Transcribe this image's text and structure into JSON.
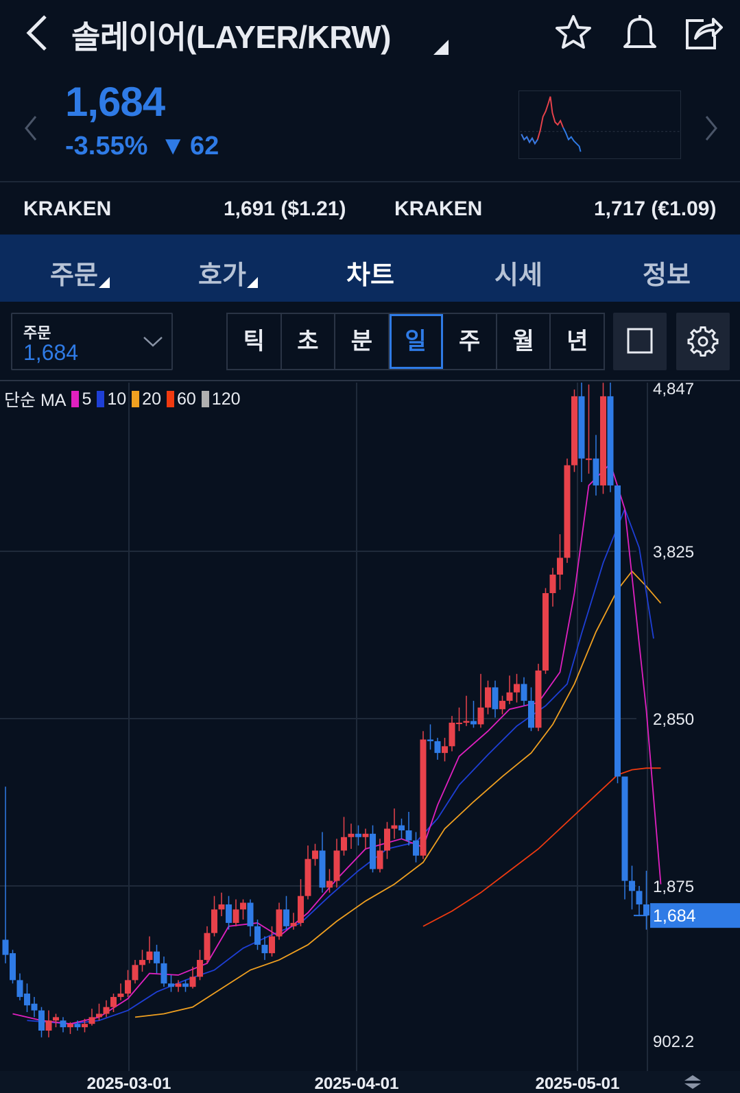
{
  "header": {
    "title": "솔레이어(LAYER/KRW)",
    "back_icon": "chevron-left-icon",
    "actions": [
      "star-icon",
      "bell-icon",
      "share-icon"
    ]
  },
  "price": {
    "current": "1,684",
    "change_pct": "-3.55%",
    "change_abs": "62",
    "color": "#2f7be6"
  },
  "exchanges": [
    {
      "name": "KRAKEN",
      "value": "1,691 ($1.21)"
    },
    {
      "name": "KRAKEN",
      "value": "1,717 (€1.09)"
    }
  ],
  "tabs": [
    "주문",
    "호가",
    "차트",
    "시세",
    "정보"
  ],
  "active_tab": "차트",
  "order_select": {
    "label": "주문",
    "value": "1,684"
  },
  "periods": [
    "틱",
    "초",
    "분",
    "일",
    "주",
    "월",
    "년"
  ],
  "active_period": "일",
  "legend": {
    "prefix": "단순 MA",
    "items": [
      {
        "label": "5",
        "color": "#e020c0"
      },
      {
        "label": "10",
        "color": "#1e3fd6"
      },
      {
        "label": "20",
        "color": "#f0a020"
      },
      {
        "label": "60",
        "color": "#f03a10"
      },
      {
        "label": "120",
        "color": "#b0b0b0"
      }
    ]
  },
  "chart_data": {
    "type": "candlestick",
    "y_ticks": [
      "4,847",
      "3,825",
      "2,850",
      "1,875",
      "902.2"
    ],
    "ylim": [
      902.2,
      4847
    ],
    "x_ticks": [
      "2025-03-01",
      "2025-04-01",
      "2025-05-01"
    ],
    "current_label": "1,684",
    "up_color": "#e8424b",
    "down_color": "#2f7be6",
    "candles": [
      [
        1540,
        1450,
        2450,
        1400
      ],
      [
        1460,
        1300,
        1480,
        1280
      ],
      [
        1300,
        1200,
        1340,
        1180
      ],
      [
        1220,
        1150,
        1280,
        1110
      ],
      [
        1160,
        1120,
        1200,
        1080
      ],
      [
        1120,
        1000,
        1140,
        960
      ],
      [
        1000,
        1060,
        1120,
        960
      ],
      [
        1060,
        1080,
        1100,
        1020
      ],
      [
        1060,
        1020,
        1080,
        990
      ],
      [
        1020,
        1040,
        1050,
        980
      ],
      [
        1040,
        1020,
        1060,
        1000
      ],
      [
        1020,
        1040,
        1070,
        990
      ],
      [
        1040,
        1080,
        1130,
        1030
      ],
      [
        1080,
        1100,
        1160,
        1060
      ],
      [
        1100,
        1140,
        1180,
        1080
      ],
      [
        1140,
        1200,
        1220,
        1110
      ],
      [
        1200,
        1220,
        1280,
        1180
      ],
      [
        1220,
        1300,
        1360,
        1200
      ],
      [
        1300,
        1390,
        1420,
        1280
      ],
      [
        1390,
        1420,
        1480,
        1350
      ],
      [
        1420,
        1470,
        1560,
        1400
      ],
      [
        1470,
        1400,
        1510,
        1340
      ],
      [
        1400,
        1280,
        1440,
        1260
      ],
      [
        1280,
        1260,
        1330,
        1230
      ],
      [
        1260,
        1280,
        1300,
        1230
      ],
      [
        1280,
        1260,
        1300,
        1230
      ],
      [
        1260,
        1320,
        1380,
        1250
      ],
      [
        1320,
        1420,
        1480,
        1300
      ],
      [
        1420,
        1580,
        1620,
        1400
      ],
      [
        1580,
        1720,
        1800,
        1560
      ],
      [
        1720,
        1750,
        1820,
        1680
      ],
      [
        1750,
        1640,
        1800,
        1600
      ],
      [
        1640,
        1720,
        1780,
        1620
      ],
      [
        1720,
        1760,
        1780,
        1660
      ],
      [
        1760,
        1620,
        1780,
        1560
      ],
      [
        1620,
        1510,
        1660,
        1480
      ],
      [
        1510,
        1460,
        1560,
        1420
      ],
      [
        1460,
        1560,
        1620,
        1440
      ],
      [
        1560,
        1720,
        1760,
        1540
      ],
      [
        1720,
        1620,
        1800,
        1600
      ],
      [
        1620,
        1640,
        1700,
        1600
      ],
      [
        1640,
        1800,
        1900,
        1620
      ],
      [
        1800,
        2020,
        2100,
        1780
      ],
      [
        2020,
        2070,
        2110,
        1980
      ],
      [
        2070,
        1850,
        2180,
        1820
      ],
      [
        1850,
        1890,
        1960,
        1820
      ],
      [
        1890,
        2070,
        2140,
        1850
      ],
      [
        2070,
        2150,
        2270,
        2040
      ],
      [
        2150,
        2170,
        2230,
        2080
      ],
      [
        2170,
        2150,
        2220,
        2100
      ],
      [
        2150,
        2170,
        2200,
        2080
      ],
      [
        2170,
        1960,
        2220,
        1940
      ],
      [
        1960,
        2070,
        2140,
        1940
      ],
      [
        2070,
        2200,
        2240,
        2020
      ],
      [
        2200,
        2220,
        2320,
        2140
      ],
      [
        2220,
        2190,
        2260,
        2140
      ],
      [
        2190,
        2130,
        2300,
        2100
      ],
      [
        2130,
        2040,
        2180,
        2000
      ],
      [
        2040,
        2730,
        2780,
        2020
      ],
      [
        2730,
        2720,
        2820,
        2670
      ],
      [
        2720,
        2650,
        2740,
        2610
      ],
      [
        2650,
        2690,
        2740,
        2600
      ],
      [
        2690,
        2830,
        2870,
        2660
      ],
      [
        2830,
        2830,
        2920,
        2780
      ],
      [
        2830,
        2840,
        2990,
        2810
      ],
      [
        2840,
        2820,
        2960,
        2800
      ],
      [
        2820,
        2920,
        3120,
        2800
      ],
      [
        2920,
        3040,
        3080,
        2880
      ],
      [
        3040,
        2910,
        3080,
        2860
      ],
      [
        2910,
        2960,
        2990,
        2880
      ],
      [
        2960,
        3010,
        3110,
        2940
      ],
      [
        3010,
        3060,
        3120,
        2950
      ],
      [
        3060,
        2960,
        3100,
        2930
      ],
      [
        2960,
        2800,
        3040,
        2780
      ],
      [
        2800,
        3140,
        3180,
        2780
      ],
      [
        3140,
        3600,
        3630,
        3120
      ],
      [
        3600,
        3710,
        3750,
        3520
      ],
      [
        3710,
        3810,
        3950,
        3620
      ],
      [
        3810,
        4360,
        4400,
        3780
      ],
      [
        4360,
        4770,
        4810,
        4320
      ],
      [
        4770,
        4400,
        4890,
        4260
      ],
      [
        4400,
        4400,
        4840,
        4310
      ],
      [
        4400,
        4240,
        4540,
        4180
      ],
      [
        4240,
        4770,
        4850,
        4190
      ],
      [
        4770,
        4240,
        4900,
        4200
      ],
      [
        4240,
        2510,
        4240,
        2470
      ],
      [
        2510,
        1890,
        2510,
        1780
      ],
      [
        1890,
        1830,
        1980,
        1720
      ],
      [
        1830,
        1750,
        1860,
        1680
      ],
      [
        1750,
        1684,
        1950,
        1600
      ]
    ],
    "ma5": [
      [
        1,
        1100
      ],
      [
        5,
        1060
      ],
      [
        9,
        1040
      ],
      [
        13,
        1080
      ],
      [
        17,
        1190
      ],
      [
        20,
        1340
      ],
      [
        24,
        1330
      ],
      [
        28,
        1400
      ],
      [
        31,
        1620
      ],
      [
        35,
        1640
      ],
      [
        38,
        1560
      ],
      [
        42,
        1700
      ],
      [
        46,
        1900
      ],
      [
        50,
        2080
      ],
      [
        55,
        2140
      ],
      [
        58,
        2090
      ],
      [
        60,
        2340
      ],
      [
        63,
        2630
      ],
      [
        67,
        2780
      ],
      [
        70,
        2910
      ],
      [
        74,
        2950
      ],
      [
        77,
        3130
      ],
      [
        79,
        3600
      ],
      [
        81,
        4240
      ],
      [
        84,
        4370
      ],
      [
        86,
        4100
      ],
      [
        89,
        2900
      ],
      [
        91,
        1870
      ]
    ],
    "ma10": [
      [
        3,
        1060
      ],
      [
        9,
        1040
      ],
      [
        13,
        1060
      ],
      [
        17,
        1120
      ],
      [
        21,
        1230
      ],
      [
        25,
        1300
      ],
      [
        29,
        1360
      ],
      [
        33,
        1490
      ],
      [
        37,
        1570
      ],
      [
        41,
        1640
      ],
      [
        45,
        1800
      ],
      [
        49,
        1950
      ],
      [
        53,
        2080
      ],
      [
        57,
        2120
      ],
      [
        60,
        2260
      ],
      [
        63,
        2460
      ],
      [
        67,
        2640
      ],
      [
        71,
        2810
      ],
      [
        75,
        2930
      ],
      [
        78,
        3060
      ],
      [
        80,
        3360
      ],
      [
        83,
        3780
      ],
      [
        86,
        4100
      ],
      [
        88,
        3870
      ],
      [
        90,
        3330
      ]
    ],
    "ma20": [
      [
        18,
        1080
      ],
      [
        22,
        1100
      ],
      [
        26,
        1140
      ],
      [
        30,
        1250
      ],
      [
        34,
        1360
      ],
      [
        38,
        1420
      ],
      [
        42,
        1510
      ],
      [
        46,
        1650
      ],
      [
        50,
        1770
      ],
      [
        54,
        1870
      ],
      [
        58,
        2000
      ],
      [
        61,
        2200
      ],
      [
        65,
        2360
      ],
      [
        69,
        2510
      ],
      [
        73,
        2650
      ],
      [
        76,
        2820
      ],
      [
        79,
        3060
      ],
      [
        82,
        3370
      ],
      [
        85,
        3620
      ],
      [
        87,
        3730
      ],
      [
        89,
        3640
      ],
      [
        91,
        3540
      ]
    ],
    "ma60": [
      [
        58,
        1620
      ],
      [
        62,
        1710
      ],
      [
        66,
        1820
      ],
      [
        70,
        1950
      ],
      [
        74,
        2080
      ],
      [
        78,
        2240
      ],
      [
        82,
        2400
      ],
      [
        85,
        2520
      ],
      [
        87,
        2550
      ],
      [
        89,
        2560
      ],
      [
        91,
        2560
      ]
    ]
  }
}
